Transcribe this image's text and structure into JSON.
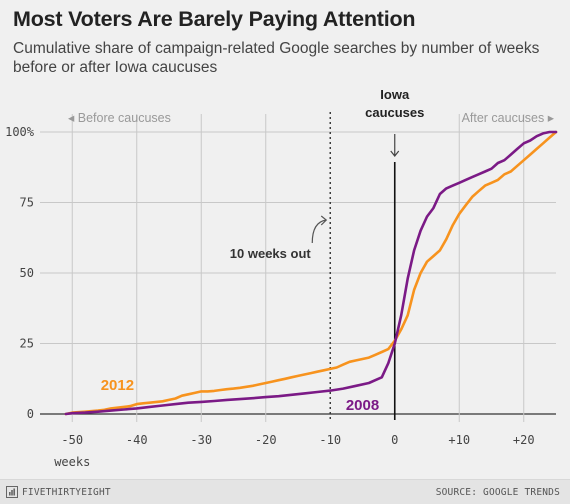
{
  "header": {
    "title": "Most Voters Are Barely Paying Attention",
    "subtitle": "Cumulative share of campaign-related Google searches by number of weeks before or after Iowa caucuses"
  },
  "footer": {
    "brand": "FIVETHIRTYEIGHT",
    "brand_icon": "fivethirtyeight-logo-icon",
    "source": "SOURCE: GOOGLE TRENDS"
  },
  "chart_data": {
    "type": "line",
    "xlim": [
      -55,
      25
    ],
    "ylim": [
      0,
      100
    ],
    "x_ticks": [
      -50,
      -40,
      -30,
      -20,
      -10,
      0,
      10,
      20
    ],
    "x_tick_labels": [
      "-50",
      "-40",
      "-30",
      "-20",
      "-10",
      "0",
      "+10",
      "+20"
    ],
    "x_unit_label": "weeks",
    "y_ticks": [
      0,
      25,
      50,
      75,
      100
    ],
    "y_tick_labels": [
      "0",
      "25",
      "50",
      "75",
      "100%"
    ],
    "grid": true,
    "colors": {
      "2012": "#f7931e",
      "2008": "#7b1a86",
      "grid": "#c8c8c8",
      "zero_line": "#333333",
      "before_after": "#999999"
    },
    "annotations": {
      "before": "Before caucuses",
      "after": "After caucuses",
      "iowa_line1": "Iowa",
      "iowa_line2": "caucuses",
      "ten_weeks": "10 weeks out",
      "label_2012": "2012",
      "label_2008": "2008"
    },
    "series": [
      {
        "name": "2012",
        "x": [
          -51,
          -50,
          -48,
          -46,
          -45,
          -44,
          -42,
          -41,
          -40,
          -39,
          -38,
          -36,
          -35,
          -34,
          -33,
          -32,
          -31,
          -30,
          -29,
          -28,
          -27,
          -26,
          -25,
          -24,
          -22,
          -21,
          -20,
          -19,
          -18,
          -17,
          -16,
          -15,
          -14,
          -13,
          -12,
          -11,
          -10,
          -9,
          -8,
          -7,
          -6,
          -5,
          -4,
          -3,
          -2,
          -1,
          0,
          1,
          2,
          3,
          4,
          5,
          6,
          7,
          8,
          9,
          10,
          11,
          12,
          13,
          14,
          15,
          16,
          17,
          18,
          19,
          20,
          21,
          22,
          23,
          24,
          25
        ],
        "y": [
          0,
          0.5,
          0.8,
          1.2,
          1.5,
          2,
          2.5,
          2.8,
          3.5,
          3.8,
          4,
          4.5,
          5,
          5.5,
          6.5,
          7,
          7.5,
          8,
          8,
          8.2,
          8.5,
          8.8,
          9,
          9.3,
          10,
          10.5,
          11,
          11.5,
          12,
          12.5,
          13,
          13.5,
          14,
          14.5,
          15,
          15.5,
          16,
          16.5,
          17.5,
          18.5,
          19,
          19.5,
          20,
          21,
          22,
          23,
          26,
          30,
          35,
          44,
          50,
          54,
          56,
          58,
          62,
          67,
          71,
          74,
          77,
          79,
          81,
          82,
          83,
          85,
          86,
          88,
          90,
          92,
          94,
          96,
          98,
          100
        ]
      },
      {
        "name": "2008",
        "x": [
          -51,
          -50,
          -48,
          -46,
          -44,
          -42,
          -40,
          -38,
          -36,
          -34,
          -32,
          -30,
          -28,
          -26,
          -24,
          -22,
          -20,
          -18,
          -16,
          -14,
          -12,
          -10,
          -8,
          -6,
          -4,
          -2,
          -1,
          0,
          1,
          2,
          3,
          4,
          5,
          6,
          7,
          8,
          9,
          10,
          11,
          12,
          13,
          14,
          15,
          16,
          17,
          18,
          19,
          20,
          21,
          22,
          23,
          24,
          25
        ],
        "y": [
          0,
          0.3,
          0.5,
          0.8,
          1.2,
          1.6,
          2,
          2.5,
          3,
          3.5,
          4,
          4.3,
          4.6,
          5,
          5.3,
          5.6,
          6,
          6.3,
          6.8,
          7.3,
          7.8,
          8.3,
          9,
          10,
          11,
          13,
          18,
          25,
          35,
          48,
          58,
          65,
          70,
          73,
          78,
          80,
          81,
          82,
          83,
          84,
          85,
          86,
          87,
          89,
          90,
          92,
          94,
          96,
          97,
          98.5,
          99.5,
          100,
          100
        ]
      }
    ]
  }
}
